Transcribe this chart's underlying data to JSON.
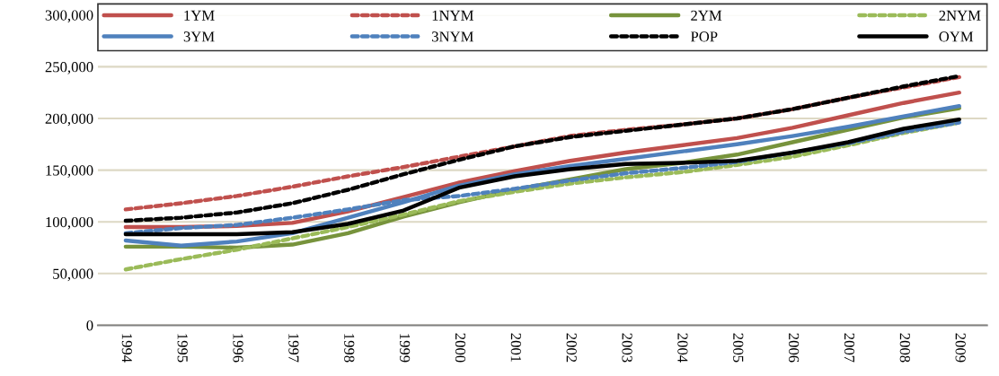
{
  "chart_data": {
    "type": "line",
    "categories": [
      "1994",
      "1995",
      "1996",
      "1997",
      "1998",
      "1999",
      "2000",
      "2001",
      "2002",
      "2003",
      "2004",
      "2005",
      "2006",
      "2007",
      "2008",
      "2009"
    ],
    "series": [
      {
        "name": "1YM",
        "color": "#c0504d",
        "line_style": "solid",
        "values": [
          95000,
          95000,
          96000,
          99000,
          110000,
          124000,
          138000,
          149000,
          159000,
          167000,
          174000,
          181000,
          191000,
          203000,
          215000,
          225000
        ]
      },
      {
        "name": "1NYM",
        "color": "#c0504d",
        "line_style": "dashed",
        "values": [
          112000,
          118000,
          125000,
          134000,
          144000,
          153000,
          163000,
          173000,
          183000,
          189000,
          194000,
          200000,
          209000,
          220000,
          230000,
          240000
        ]
      },
      {
        "name": "2YM",
        "color": "#77933c",
        "line_style": "solid",
        "values": [
          76000,
          76000,
          75000,
          78000,
          89000,
          105000,
          119000,
          131000,
          141000,
          151000,
          157000,
          165000,
          177000,
          189000,
          201000,
          210000
        ]
      },
      {
        "name": "2NYM",
        "color": "#9bbb59",
        "line_style": "dashed",
        "values": [
          54000,
          64000,
          73000,
          84000,
          95000,
          107000,
          120000,
          129000,
          137000,
          143000,
          148000,
          155000,
          163000,
          174000,
          186000,
          196000
        ]
      },
      {
        "name": "3YM",
        "color": "#4f81bd",
        "line_style": "solid",
        "values": [
          82000,
          77000,
          81000,
          89000,
          104000,
          119000,
          135000,
          146000,
          154000,
          161000,
          168000,
          175000,
          183000,
          192000,
          202000,
          212000
        ]
      },
      {
        "name": "3NYM",
        "color": "#4f81bd",
        "line_style": "dashed",
        "values": [
          89000,
          94000,
          97000,
          104000,
          112000,
          121000,
          125000,
          132000,
          140000,
          147000,
          152000,
          158000,
          167000,
          176000,
          187000,
          196000
        ]
      },
      {
        "name": "POP",
        "color": "#000000",
        "line_style": "dashed",
        "values": [
          101000,
          104000,
          109000,
          118000,
          131000,
          146000,
          160000,
          173000,
          182000,
          188000,
          194000,
          200000,
          209000,
          220000,
          231000,
          241000
        ]
      },
      {
        "name": "OYM",
        "color": "#000000",
        "line_style": "solid",
        "values": [
          88000,
          88000,
          88000,
          90000,
          98000,
          111000,
          133000,
          144000,
          151000,
          156000,
          157000,
          159000,
          167000,
          177000,
          190000,
          199000
        ]
      }
    ],
    "ylim": [
      0,
      300000
    ],
    "yticks": [
      {
        "value": 0,
        "label": "0"
      },
      {
        "value": 50000,
        "label": "50,000"
      },
      {
        "value": 100000,
        "label": "100,000"
      },
      {
        "value": 150000,
        "label": "150,000"
      },
      {
        "value": 200000,
        "label": "200,000"
      },
      {
        "value": 250000,
        "label": "250,000"
      },
      {
        "value": 300000,
        "label": "300,000"
      }
    ],
    "grid": "y",
    "legend": "top",
    "marker": "none"
  }
}
